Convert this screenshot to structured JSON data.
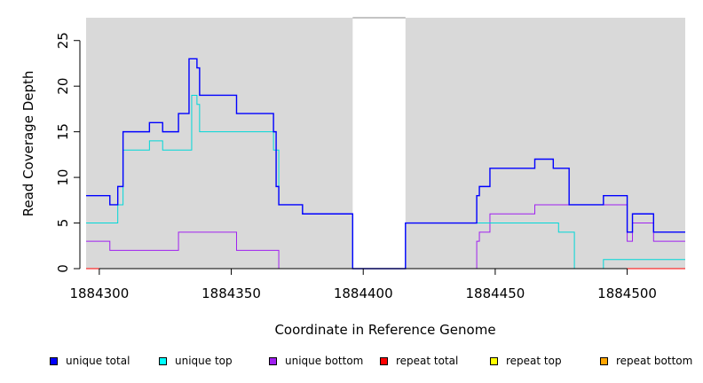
{
  "chart_data": {
    "type": "line",
    "step": true,
    "xlabel": "Coordinate in Reference Genome",
    "ylabel": "Read Coverage Depth",
    "xlim": [
      1884295,
      1884522
    ],
    "ylim": [
      0,
      27.5
    ],
    "xticks": [
      1884300,
      1884350,
      1884400,
      1884450,
      1884500
    ],
    "yticks": [
      0,
      5,
      10,
      15,
      20,
      25
    ],
    "x_tick_labels": [
      "1884300",
      "1884350",
      "1884400",
      "1884450",
      "1884500"
    ],
    "y_tick_labels": [
      "0",
      "5",
      "10",
      "15",
      "20",
      "25"
    ],
    "gap": [
      1884396,
      1884416
    ],
    "series": [
      {
        "name": "unique total",
        "color": "#0000ff",
        "points": [
          [
            1884295,
            8
          ],
          [
            1884304,
            7
          ],
          [
            1884307,
            9
          ],
          [
            1884309,
            15
          ],
          [
            1884319,
            16
          ],
          [
            1884324,
            15
          ],
          [
            1884330,
            17
          ],
          [
            1884334,
            23
          ],
          [
            1884337,
            22
          ],
          [
            1884338,
            19
          ],
          [
            1884352,
            17
          ],
          [
            1884366,
            15
          ],
          [
            1884367,
            9
          ],
          [
            1884368,
            7
          ],
          [
            1884377,
            6
          ],
          [
            1884396,
            0
          ],
          [
            1884416,
            5
          ],
          [
            1884443,
            8
          ],
          [
            1884444,
            9
          ],
          [
            1884448,
            11
          ],
          [
            1884465,
            12
          ],
          [
            1884472,
            11
          ],
          [
            1884478,
            7
          ],
          [
            1884491,
            8
          ],
          [
            1884500,
            4
          ],
          [
            1884502,
            6
          ],
          [
            1884510,
            4
          ],
          [
            1884522,
            4
          ]
        ]
      },
      {
        "name": "unique top",
        "color": "#00d8d8",
        "points": [
          [
            1884295,
            5
          ],
          [
            1884307,
            7
          ],
          [
            1884309,
            13
          ],
          [
            1884319,
            14
          ],
          [
            1884324,
            13
          ],
          [
            1884335,
            19
          ],
          [
            1884337,
            18
          ],
          [
            1884338,
            15
          ],
          [
            1884366,
            13
          ],
          [
            1884368,
            7
          ],
          [
            1884377,
            6
          ],
          [
            1884396,
            0
          ],
          [
            1884416,
            5
          ],
          [
            1884448,
            5
          ],
          [
            1884474,
            4
          ],
          [
            1884480,
            0
          ],
          [
            1884491,
            1
          ],
          [
            1884522,
            1
          ]
        ]
      },
      {
        "name": "unique bottom",
        "color": "#a020f0",
        "points": [
          [
            1884295,
            3
          ],
          [
            1884304,
            2
          ],
          [
            1884330,
            4
          ],
          [
            1884352,
            2
          ],
          [
            1884368,
            0
          ],
          [
            1884443,
            3
          ],
          [
            1884444,
            4
          ],
          [
            1884448,
            6
          ],
          [
            1884465,
            7
          ],
          [
            1884500,
            3
          ],
          [
            1884502,
            5
          ],
          [
            1884510,
            3
          ],
          [
            1884522,
            3
          ]
        ]
      },
      {
        "name": "repeat total",
        "color": "#ff0000",
        "points": [
          [
            1884295,
            0
          ],
          [
            1884522,
            0
          ]
        ]
      },
      {
        "name": "repeat top",
        "color": "#ffff00",
        "points": [
          [
            1884295,
            0
          ],
          [
            1884522,
            0
          ]
        ]
      },
      {
        "name": "repeat bottom",
        "color": "#ffa500",
        "points": [
          [
            1884295,
            0
          ],
          [
            1884522,
            0
          ]
        ]
      }
    ],
    "legend_position": "bottom"
  }
}
